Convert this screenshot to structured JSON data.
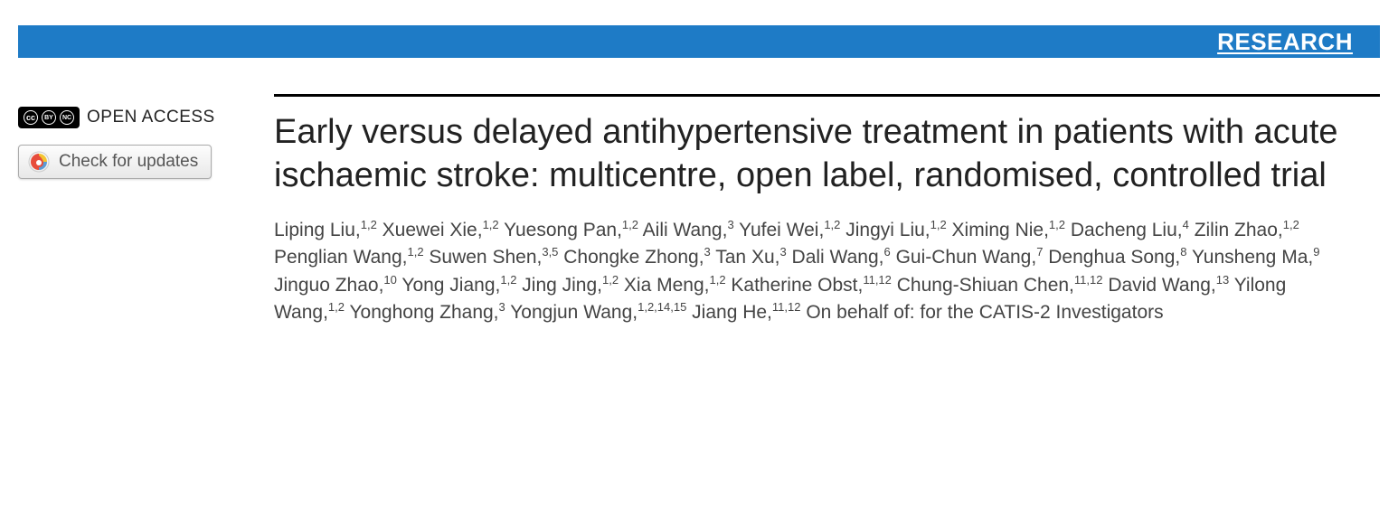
{
  "header": {
    "section_label": "RESEARCH",
    "bar_color": "#1e7bc6",
    "text_color": "#ffffff"
  },
  "sidebar": {
    "open_access_label": "OPEN ACCESS",
    "cc_symbols": [
      "cc",
      "BY",
      "NC"
    ],
    "check_updates_label": "Check for updates"
  },
  "article": {
    "title": "Early versus delayed antihypertensive treatment in patients with acute ischaemic stroke: multicentre, open label, randomised, controlled trial",
    "authors": [
      {
        "name": "Liping Liu",
        "affil": "1,2"
      },
      {
        "name": "Xuewei Xie",
        "affil": "1,2"
      },
      {
        "name": "Yuesong Pan",
        "affil": "1,2"
      },
      {
        "name": "Aili Wang",
        "affil": "3"
      },
      {
        "name": "Yufei Wei",
        "affil": "1,2"
      },
      {
        "name": "Jingyi Liu",
        "affil": "1,2"
      },
      {
        "name": "Ximing Nie",
        "affil": "1,2"
      },
      {
        "name": "Dacheng Liu",
        "affil": "4"
      },
      {
        "name": "Zilin Zhao",
        "affil": "1,2"
      },
      {
        "name": "Penglian Wang",
        "affil": "1,2"
      },
      {
        "name": "Suwen Shen",
        "affil": "3,5"
      },
      {
        "name": "Chongke Zhong",
        "affil": "3"
      },
      {
        "name": "Tan Xu",
        "affil": "3"
      },
      {
        "name": "Dali Wang",
        "affil": "6"
      },
      {
        "name": "Gui-Chun Wang",
        "affil": "7"
      },
      {
        "name": "Denghua Song",
        "affil": "8"
      },
      {
        "name": "Yunsheng Ma",
        "affil": "9"
      },
      {
        "name": "Jinguo Zhao",
        "affil": "10"
      },
      {
        "name": "Yong Jiang",
        "affil": "1,2"
      },
      {
        "name": "Jing Jing",
        "affil": "1,2"
      },
      {
        "name": "Xia Meng",
        "affil": "1,2"
      },
      {
        "name": "Katherine Obst",
        "affil": "11,12"
      },
      {
        "name": "Chung-Shiuan Chen",
        "affil": "11,12"
      },
      {
        "name": "David Wang",
        "affil": "13"
      },
      {
        "name": "Yilong Wang",
        "affil": "1,2"
      },
      {
        "name": "Yonghong Zhang",
        "affil": "3"
      },
      {
        "name": "Yongjun Wang",
        "affil": "1,2,14,15"
      },
      {
        "name": "Jiang He",
        "affil": "11,12"
      }
    ],
    "on_behalf": "On behalf of: for the CATIS-2 Investigators",
    "title_fontsize": 38,
    "author_fontsize": 21,
    "rule_color": "#000000"
  }
}
